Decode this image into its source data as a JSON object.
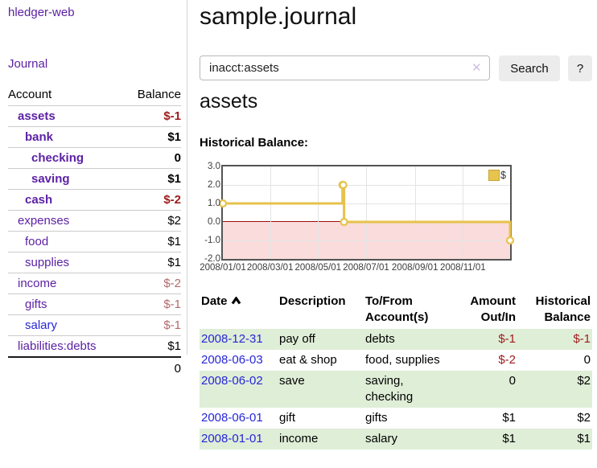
{
  "sidebar": {
    "brand": "hledger-web",
    "journal_link": "Journal",
    "accounts": {
      "header_account": "Account",
      "header_balance": "Balance",
      "rows": [
        {
          "name": "assets",
          "balance": "$-1",
          "indent": 1,
          "bold": true,
          "name_color": "purple",
          "balance_color": "neg"
        },
        {
          "name": "bank",
          "balance": "$1",
          "indent": 2,
          "bold": true,
          "name_color": "purple",
          "balance_color": "default"
        },
        {
          "name": "checking",
          "balance": "0",
          "indent": 3,
          "bold": true,
          "name_color": "purple",
          "balance_color": "default"
        },
        {
          "name": "saving",
          "balance": "$1",
          "indent": 3,
          "bold": true,
          "name_color": "purple",
          "balance_color": "default"
        },
        {
          "name": "cash",
          "balance": "$-2",
          "indent": 2,
          "bold": true,
          "name_color": "purple",
          "balance_color": "neg"
        },
        {
          "name": "expenses",
          "balance": "$2",
          "indent": 1,
          "bold": false,
          "name_color": "purple",
          "balance_color": "default"
        },
        {
          "name": "food",
          "balance": "$1",
          "indent": 2,
          "bold": false,
          "name_color": "purple",
          "balance_color": "default"
        },
        {
          "name": "supplies",
          "balance": "$1",
          "indent": 2,
          "bold": false,
          "name_color": "purple",
          "balance_color": "default"
        },
        {
          "name": "income",
          "balance": "$-2",
          "indent": 1,
          "bold": false,
          "name_color": "purple",
          "balance_color": "negmuted"
        },
        {
          "name": "gifts",
          "balance": "$-1",
          "indent": 2,
          "bold": false,
          "name_color": "purple",
          "balance_color": "negmuted"
        },
        {
          "name": "salary",
          "balance": "$-1",
          "indent": 2,
          "bold": false,
          "name_color": "blue",
          "balance_color": "negmuted"
        },
        {
          "name": "liabilities:debts",
          "balance": "$1",
          "indent": 1,
          "bold": false,
          "name_color": "purple",
          "balance_color": "default"
        }
      ],
      "total": "0"
    }
  },
  "main": {
    "title": "sample.journal",
    "search": {
      "value": "inacct:assets",
      "clear_icon": "✕",
      "search_label": "Search",
      "help_label": "?"
    },
    "account_heading": "assets",
    "chart_label": "Historical Balance:"
  },
  "chart_data": {
    "type": "line",
    "title": "Historical Balance:",
    "style": "steps",
    "legend": {
      "label": "$",
      "position": "top-right",
      "swatch_color": "#e7c44e"
    },
    "series": [
      {
        "name": "$",
        "color": "#e7c24b",
        "points": [
          {
            "date": "2008/01/01",
            "value": 1
          },
          {
            "date": "2008/06/01",
            "value": 2
          },
          {
            "date": "2008/06/02",
            "value": 2
          },
          {
            "date": "2008/06/03",
            "value": 0
          },
          {
            "date": "2008/12/31",
            "value": -1
          }
        ]
      }
    ],
    "xrange": [
      "2008/01/01",
      "2008/12/31"
    ],
    "ylim": [
      -2,
      3
    ],
    "yticks": [
      3.0,
      2.0,
      1.0,
      0.0,
      -1.0,
      -2.0
    ],
    "ytick_labels": [
      "3.0",
      "2.0",
      "1.0",
      "0.0",
      "-1.0",
      "-2.0"
    ],
    "xticks": [
      "2008/01/01",
      "2008/03/01",
      "2008/05/01",
      "2008/07/01",
      "2008/09/01",
      "2008/11/01"
    ],
    "grid": true,
    "negative_region_color": "#fadcdc",
    "zero_line_color": "#991111"
  },
  "register": {
    "headers": {
      "date": "Date",
      "sort_icon": "chevron-up",
      "description": "Description",
      "accounts": "To/From Account(s)",
      "amount": "Amount Out/In",
      "balance": "Historical Balance"
    },
    "rows": [
      {
        "date": "2008-12-31",
        "description": "pay off",
        "accounts": "debts",
        "amount": "$-1",
        "amount_negative": true,
        "balance": "$-1",
        "balance_negative": true,
        "shaded": true
      },
      {
        "date": "2008-06-03",
        "description": "eat & shop",
        "accounts": "food, supplies",
        "amount": "$-2",
        "amount_negative": true,
        "balance": "0",
        "balance_negative": false,
        "shaded": false
      },
      {
        "date": "2008-06-02",
        "description": "save",
        "accounts": "saving, checking",
        "amount": "0",
        "amount_negative": false,
        "balance": "$2",
        "balance_negative": false,
        "shaded": true
      },
      {
        "date": "2008-06-01",
        "description": "gift",
        "accounts": "gifts",
        "amount": "$1",
        "amount_negative": false,
        "balance": "$2",
        "balance_negative": false,
        "shaded": false
      },
      {
        "date": "2008-01-01",
        "description": "income",
        "accounts": "salary",
        "amount": "$1",
        "amount_negative": false,
        "balance": "$1",
        "balance_negative": false,
        "shaded": true
      }
    ]
  }
}
